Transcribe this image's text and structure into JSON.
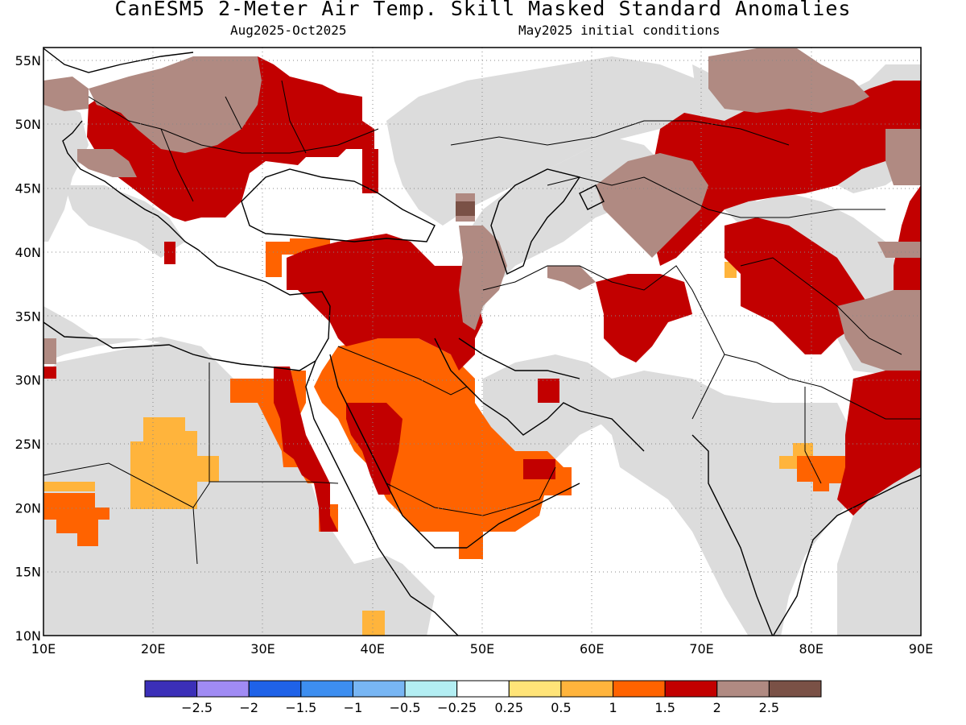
{
  "header": {
    "title": "CanESM5 2-Meter Air Temp. Skill Masked Standard Anomalies",
    "period": "Aug2025-Oct2025",
    "init": "May2025 initial conditions"
  },
  "map": {
    "lon_range": [
      10,
      90
    ],
    "lat_range": [
      10,
      56
    ],
    "lon_ticks": [
      10,
      20,
      30,
      40,
      50,
      60,
      70,
      80,
      90
    ],
    "lat_ticks": [
      10,
      15,
      20,
      25,
      30,
      35,
      40,
      45,
      50,
      55
    ],
    "lon_tick_labels": [
      "10E",
      "20E",
      "30E",
      "40E",
      "50E",
      "60E",
      "70E",
      "80E",
      "90E"
    ],
    "lat_tick_labels": [
      "10N",
      "15N",
      "20N",
      "25N",
      "30N",
      "35N",
      "40N",
      "45N",
      "50N",
      "55N"
    ],
    "gridlines": "dotted",
    "mask_color": "#dcdcdc"
  },
  "colorbar": {
    "colors": [
      "#3b2fb8",
      "#a08bf4",
      "#1f62e8",
      "#3d8ef0",
      "#78b6f4",
      "#b3eef3",
      "#ffffff",
      "#ffe478",
      "#ffb43c",
      "#ff6300",
      "#c20000",
      "#b08a82",
      "#7a5146"
    ],
    "labels": [
      "-2.5",
      "-2",
      "-1.5",
      "-1",
      "-0.5",
      "-0.25",
      "0.25",
      "0.5",
      "1",
      "1.5",
      "2",
      "2.5"
    ]
  }
}
